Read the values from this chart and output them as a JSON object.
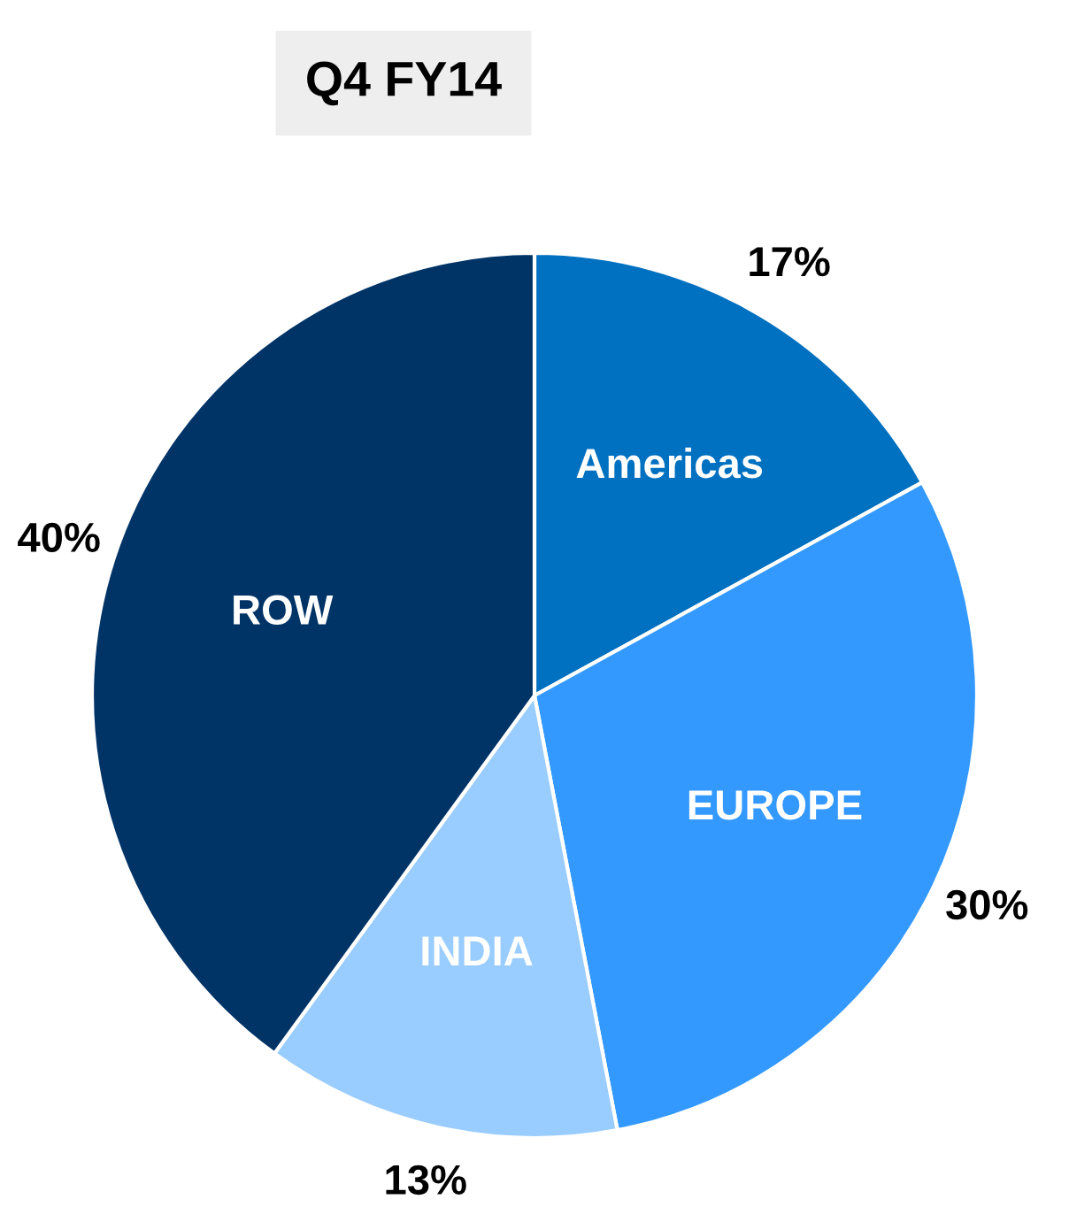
{
  "chart_data": {
    "type": "pie",
    "title": "Q4 FY14",
    "categories": [
      "Americas",
      "EUROPE",
      "INDIA",
      "ROW"
    ],
    "values": [
      17,
      30,
      13,
      40
    ],
    "colors": [
      "#0070c0",
      "#3399ff",
      "#99ccff",
      "#003366"
    ],
    "value_labels": [
      "17%",
      "30%",
      "13%",
      "40%"
    ]
  }
}
